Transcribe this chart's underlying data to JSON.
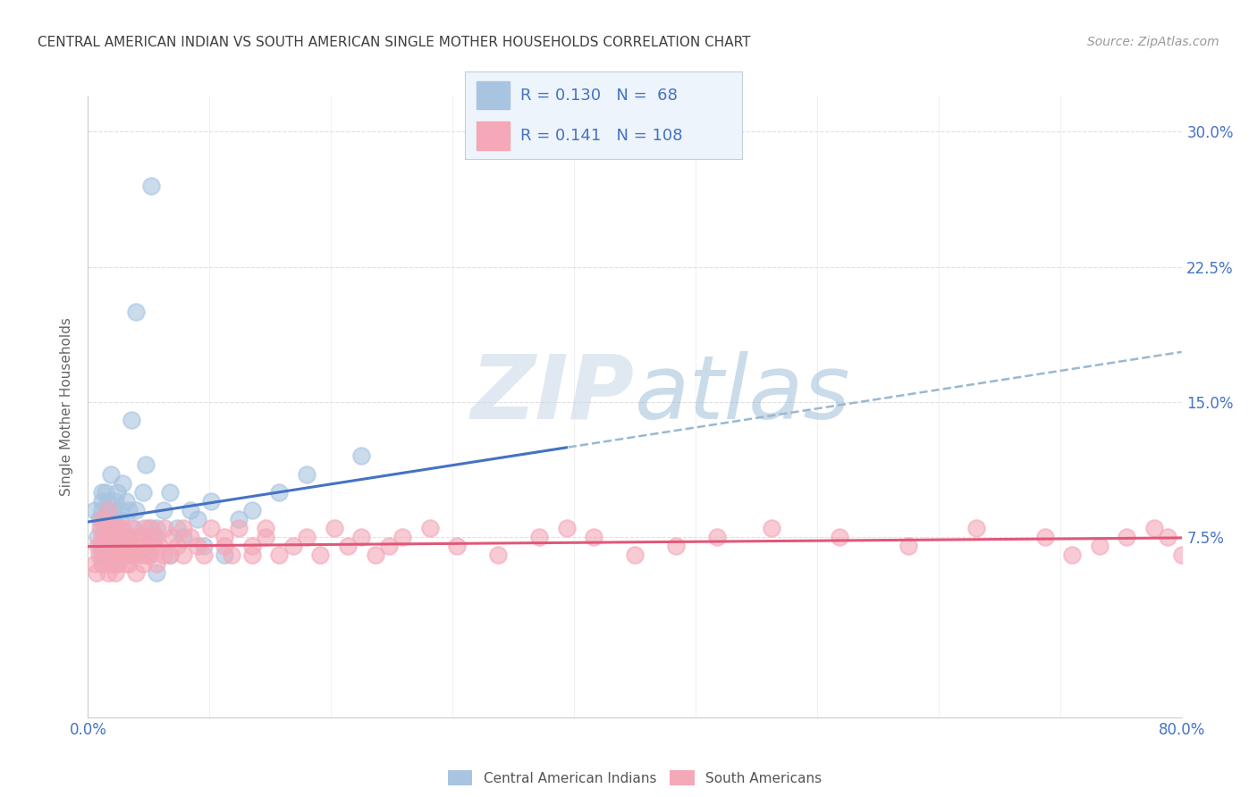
{
  "title": "CENTRAL AMERICAN INDIAN VS SOUTH AMERICAN SINGLE MOTHER HOUSEHOLDS CORRELATION CHART",
  "source": "Source: ZipAtlas.com",
  "ylabel": "Single Mother Households",
  "xlim": [
    0.0,
    0.8
  ],
  "ylim": [
    -0.025,
    0.32
  ],
  "blue_color": "#a8c4e0",
  "pink_color": "#f4a8b8",
  "blue_line_color": "#4472c4",
  "pink_line_color": "#e05878",
  "dashed_color": "#9ab8d0",
  "R_blue": 0.13,
  "N_blue": 68,
  "R_pink": 0.141,
  "N_pink": 108,
  "watermark_text": "ZIPatlas",
  "watermark_color": "#d0dde8",
  "background_color": "#ffffff",
  "grid_color": "#d8d8d8",
  "title_color": "#404040",
  "axis_label_color": "#4472c4",
  "right_yticks": [
    0.075,
    0.15,
    0.225,
    0.3
  ],
  "right_ytick_labels": [
    "7.5%",
    "15.0%",
    "22.5%",
    "30.0%"
  ],
  "legend_label_blue": "Central American Indians",
  "legend_label_pink": "South Americans",
  "blue_scatter_x": [
    0.005,
    0.007,
    0.008,
    0.009,
    0.01,
    0.01,
    0.01,
    0.01,
    0.01,
    0.01,
    0.012,
    0.012,
    0.013,
    0.013,
    0.014,
    0.015,
    0.015,
    0.015,
    0.016,
    0.017,
    0.018,
    0.018,
    0.019,
    0.02,
    0.02,
    0.02,
    0.02,
    0.021,
    0.022,
    0.022,
    0.023,
    0.024,
    0.025,
    0.025,
    0.026,
    0.027,
    0.028,
    0.03,
    0.03,
    0.032,
    0.033,
    0.034,
    0.035,
    0.035,
    0.04,
    0.04,
    0.042,
    0.044,
    0.045,
    0.046,
    0.048,
    0.05,
    0.05,
    0.055,
    0.06,
    0.06,
    0.065,
    0.07,
    0.075,
    0.08,
    0.085,
    0.09,
    0.1,
    0.11,
    0.12,
    0.14,
    0.16,
    0.2
  ],
  "blue_scatter_y": [
    0.09,
    0.075,
    0.085,
    0.07,
    0.065,
    0.08,
    0.09,
    0.095,
    0.1,
    0.06,
    0.07,
    0.085,
    0.075,
    0.1,
    0.09,
    0.065,
    0.08,
    0.095,
    0.075,
    0.11,
    0.065,
    0.085,
    0.09,
    0.06,
    0.07,
    0.08,
    0.095,
    0.1,
    0.065,
    0.075,
    0.085,
    0.09,
    0.07,
    0.105,
    0.075,
    0.065,
    0.095,
    0.075,
    0.09,
    0.14,
    0.08,
    0.065,
    0.2,
    0.09,
    0.1,
    0.07,
    0.115,
    0.08,
    0.065,
    0.27,
    0.075,
    0.055,
    0.08,
    0.09,
    0.065,
    0.1,
    0.08,
    0.075,
    0.09,
    0.085,
    0.07,
    0.095,
    0.065,
    0.085,
    0.09,
    0.1,
    0.11,
    0.12
  ],
  "pink_scatter_x": [
    0.005,
    0.006,
    0.007,
    0.008,
    0.009,
    0.01,
    0.01,
    0.01,
    0.01,
    0.012,
    0.013,
    0.013,
    0.014,
    0.015,
    0.015,
    0.015,
    0.016,
    0.016,
    0.017,
    0.018,
    0.018,
    0.019,
    0.02,
    0.02,
    0.02,
    0.02,
    0.021,
    0.022,
    0.023,
    0.023,
    0.024,
    0.025,
    0.025,
    0.026,
    0.027,
    0.028,
    0.028,
    0.03,
    0.03,
    0.03,
    0.032,
    0.033,
    0.034,
    0.035,
    0.035,
    0.036,
    0.038,
    0.04,
    0.04,
    0.041,
    0.042,
    0.043,
    0.044,
    0.045,
    0.046,
    0.048,
    0.05,
    0.05,
    0.052,
    0.055,
    0.056,
    0.06,
    0.062,
    0.065,
    0.07,
    0.07,
    0.075,
    0.08,
    0.085,
    0.09,
    0.1,
    0.1,
    0.105,
    0.11,
    0.12,
    0.12,
    0.13,
    0.13,
    0.14,
    0.15,
    0.16,
    0.17,
    0.18,
    0.19,
    0.2,
    0.21,
    0.22,
    0.23,
    0.25,
    0.27,
    0.3,
    0.33,
    0.35,
    0.37,
    0.4,
    0.43,
    0.46,
    0.5,
    0.55,
    0.6,
    0.65,
    0.7,
    0.72,
    0.74,
    0.76,
    0.78,
    0.79,
    0.8
  ],
  "pink_scatter_y": [
    0.06,
    0.055,
    0.07,
    0.065,
    0.08,
    0.06,
    0.07,
    0.075,
    0.085,
    0.065,
    0.07,
    0.08,
    0.065,
    0.055,
    0.07,
    0.09,
    0.06,
    0.075,
    0.065,
    0.08,
    0.07,
    0.06,
    0.055,
    0.07,
    0.08,
    0.065,
    0.075,
    0.06,
    0.07,
    0.08,
    0.065,
    0.07,
    0.08,
    0.065,
    0.075,
    0.06,
    0.07,
    0.06,
    0.065,
    0.075,
    0.08,
    0.07,
    0.065,
    0.055,
    0.075,
    0.07,
    0.065,
    0.06,
    0.075,
    0.08,
    0.065,
    0.07,
    0.075,
    0.065,
    0.08,
    0.07,
    0.06,
    0.075,
    0.07,
    0.065,
    0.08,
    0.065,
    0.075,
    0.07,
    0.08,
    0.065,
    0.075,
    0.07,
    0.065,
    0.08,
    0.07,
    0.075,
    0.065,
    0.08,
    0.07,
    0.065,
    0.075,
    0.08,
    0.065,
    0.07,
    0.075,
    0.065,
    0.08,
    0.07,
    0.075,
    0.065,
    0.07,
    0.075,
    0.08,
    0.07,
    0.065,
    0.075,
    0.08,
    0.075,
    0.065,
    0.07,
    0.075,
    0.08,
    0.075,
    0.07,
    0.08,
    0.075,
    0.065,
    0.07,
    0.075,
    0.08,
    0.075,
    0.065
  ]
}
